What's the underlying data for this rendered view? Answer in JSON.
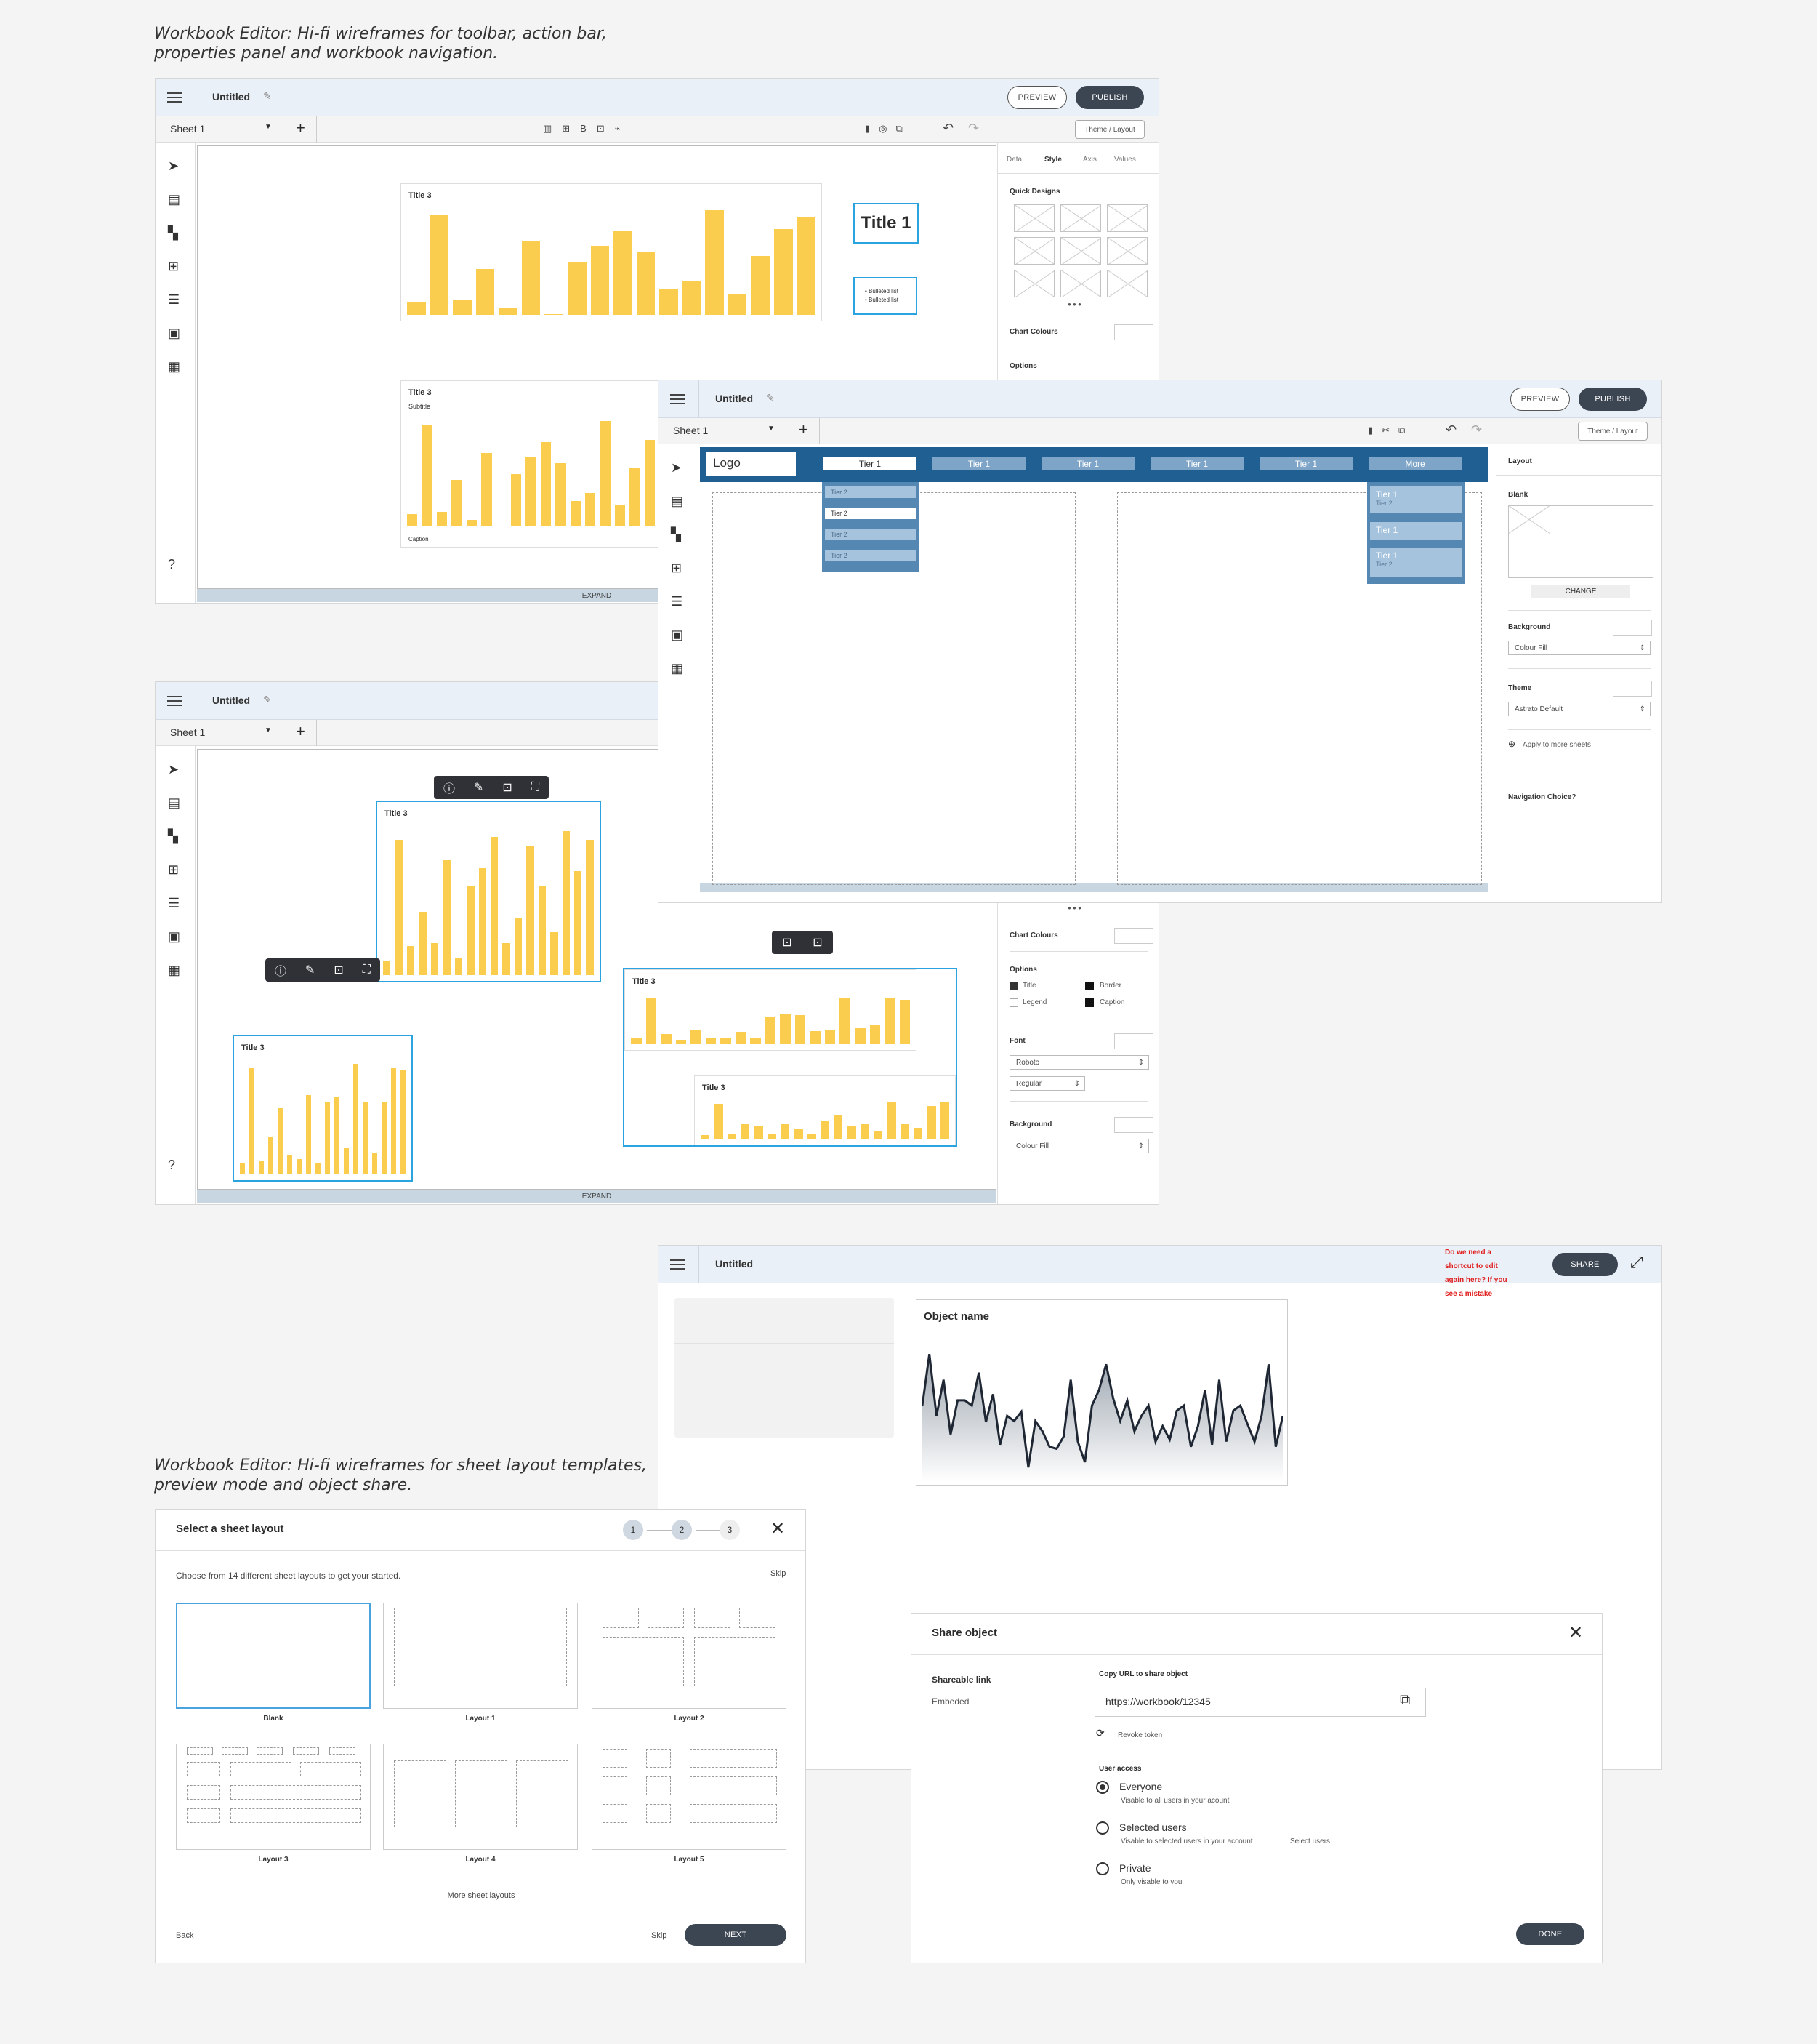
{
  "captions": {
    "top": [
      "Workbook Editor: Hi-fi wireframes for toolbar, action bar,",
      "properties panel and workbook navigation."
    ],
    "bottom": [
      "Workbook Editor: Hi-fi wireframes for sheet layout templates,",
      "preview mode and object share."
    ]
  },
  "editor": {
    "title": "Untitled",
    "preview": "PREVIEW",
    "publish": "PUBLISH",
    "sheet": "Sheet 1",
    "theme_layout": "Theme / Layout",
    "expand": "EXPAND",
    "tabs": [
      "Data",
      "Style",
      "Axis",
      "Values"
    ],
    "quick_designs": "Quick Designs",
    "chart_colours": "Chart Colours",
    "options": "Options",
    "chart_title": "Title 3",
    "subtitle": "Subtitle",
    "caption": "Caption",
    "title1": "Title 1",
    "bulleted": [
      "Bulleted list",
      "Bulleted list"
    ],
    "font": "Font",
    "font_value": "Roboto",
    "weight_value": "Regular",
    "background": "Background",
    "fill_value": "Colour Fill",
    "opt_title": "Title",
    "opt_legend": "Legend",
    "opt_border": "Border",
    "opt_caption": "Caption"
  },
  "nav": {
    "logo": "Logo",
    "tier1": [
      "Tier 1",
      "Tier 1",
      "Tier 1",
      "Tier 1",
      "Tier 1",
      "More"
    ],
    "tier2": [
      "Tier 2",
      "Tier 2",
      "Tier 2",
      "Tier 2"
    ],
    "more_items": [
      "Tier 1",
      "Tier 2",
      "Tier 1",
      "Tier 1",
      "Tier 2"
    ],
    "layout_panel": {
      "layout": "Layout",
      "blank": "Blank",
      "change": "CHANGE",
      "background": "Background",
      "fill": "Colour Fill",
      "theme": "Theme",
      "theme_value": "Astrato Default",
      "apply": "Apply to more sheets",
      "nav_choice": "Navigation Choice?"
    }
  },
  "preview": {
    "title": "Untitled",
    "share": "SHARE",
    "note": [
      "Do we need a",
      "shortcut to edit",
      "again here? If you",
      "see a mistake"
    ],
    "object_name": "Object name",
    "note_color": "#e02020"
  },
  "layout_dialog": {
    "title": "Select a sheet layout",
    "steps": [
      "1",
      "2",
      "3"
    ],
    "desc": "Choose from 14 different sheet layouts to get your started.",
    "skip": "Skip",
    "cards": [
      "Blank",
      "Layout 1",
      "Layout 2",
      "Layout 3",
      "Layout 4",
      "Layout 5"
    ],
    "more": "More sheet layouts",
    "back": "Back",
    "skip2": "Skip",
    "next": "NEXT"
  },
  "share_dialog": {
    "title": "Share object",
    "tab_link": "Shareable link",
    "tab_embed": "Embeded",
    "copy_label": "Copy URL to share object",
    "url": "https://workbook/12345",
    "revoke": "Revoke token",
    "user_access": "User access",
    "everyone": "Everyone",
    "everyone_sub": "Visable to all users in your acount",
    "selected": "Selected users",
    "selected_sub": "Visable to selected users in your account",
    "select_users": "Select users",
    "private": "Private",
    "private_sub": "Only visable to you",
    "done": "DONE"
  },
  "colors": {
    "bar": "#fbcd4f",
    "nav": "#1f5f92",
    "accent": "#2aa3df",
    "dark_button": "#3c4552"
  }
}
